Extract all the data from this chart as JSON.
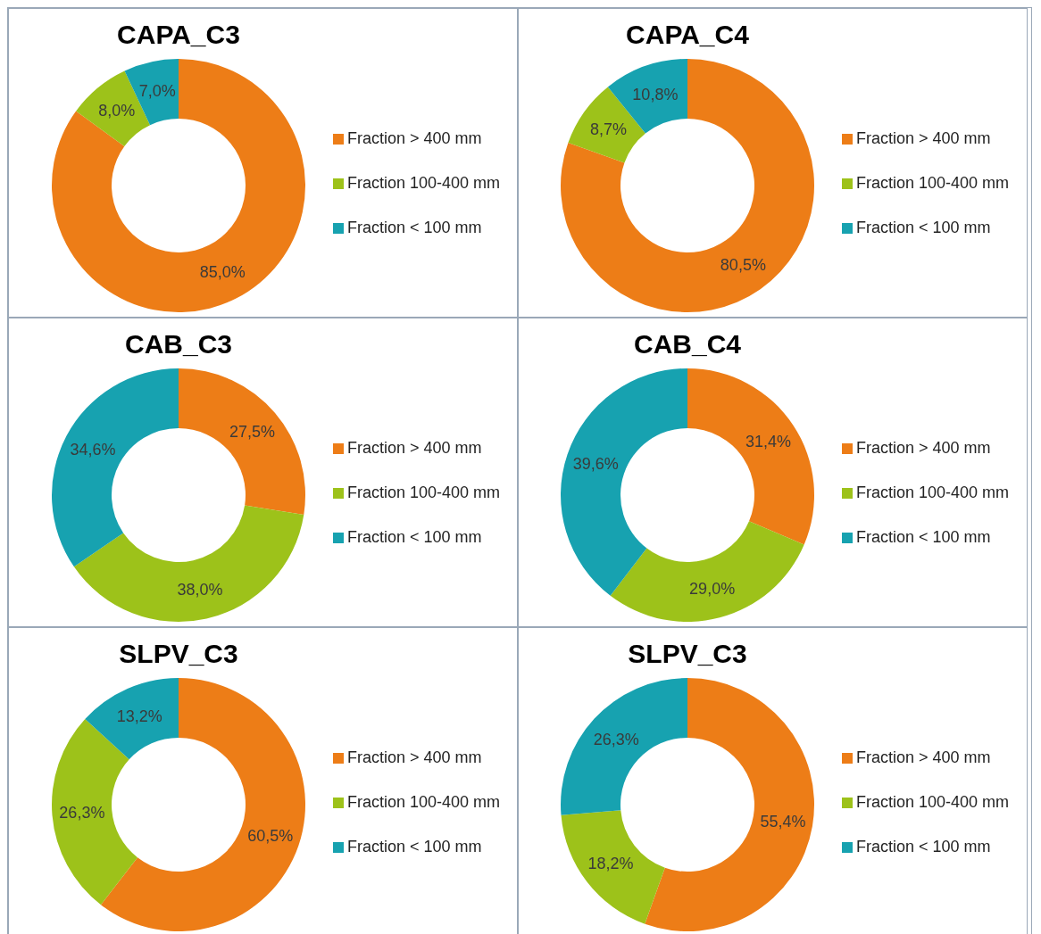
{
  "chart_data": [
    {
      "type": "donut",
      "title": "CAPA_C3",
      "categories": [
        "Fraction > 400 mm",
        "Fraction 100-400 mm",
        "Fraction < 100 mm"
      ],
      "values": [
        85.0,
        8.0,
        7.0
      ],
      "value_labels": [
        "85,0%",
        "8,0%",
        "7,0%"
      ],
      "colors": [
        "#ed7d17",
        "#9dc21a",
        "#17a2b0"
      ],
      "legend": "right"
    },
    {
      "type": "donut",
      "title": "CAPA_C4",
      "categories": [
        "Fraction > 400 mm",
        "Fraction 100-400 mm",
        "Fraction < 100 mm"
      ],
      "values": [
        80.5,
        8.7,
        10.8
      ],
      "value_labels": [
        "80,5%",
        "8,7%",
        "10,8%"
      ],
      "colors": [
        "#ed7d17",
        "#9dc21a",
        "#17a2b0"
      ],
      "legend": "right"
    },
    {
      "type": "donut",
      "title": "CAB_C3",
      "categories": [
        "Fraction > 400 mm",
        "Fraction 100-400 mm",
        "Fraction < 100 mm"
      ],
      "values": [
        27.5,
        38.0,
        34.6
      ],
      "value_labels": [
        "27,5%",
        "38,0%",
        "34,6%"
      ],
      "colors": [
        "#ed7d17",
        "#9dc21a",
        "#17a2b0"
      ],
      "legend": "right"
    },
    {
      "type": "donut",
      "title": "CAB_C4",
      "categories": [
        "Fraction > 400 mm",
        "Fraction 100-400 mm",
        "Fraction < 100 mm"
      ],
      "values": [
        31.4,
        29.0,
        39.6
      ],
      "value_labels": [
        "31,4%",
        "29,0%",
        "39,6%"
      ],
      "colors": [
        "#ed7d17",
        "#9dc21a",
        "#17a2b0"
      ],
      "legend": "right"
    },
    {
      "type": "donut",
      "title": "SLPV_C3",
      "categories": [
        "Fraction > 400 mm",
        "Fraction 100-400 mm",
        "Fraction < 100 mm"
      ],
      "values": [
        60.5,
        26.3,
        13.2
      ],
      "value_labels": [
        "60,5%",
        "26,3%",
        "13,2%"
      ],
      "colors": [
        "#ed7d17",
        "#9dc21a",
        "#17a2b0"
      ],
      "legend": "right"
    },
    {
      "type": "donut",
      "title": "SLPV_C3",
      "categories": [
        "Fraction > 400 mm",
        "Fraction 100-400 mm",
        "Fraction < 100 mm"
      ],
      "values": [
        55.4,
        18.2,
        26.3
      ],
      "value_labels": [
        "55,4%",
        "18,2%",
        "26,3%"
      ],
      "colors": [
        "#ed7d17",
        "#9dc21a",
        "#17a2b0"
      ],
      "legend": "right"
    }
  ]
}
